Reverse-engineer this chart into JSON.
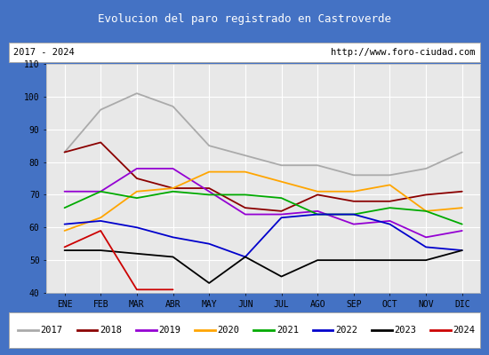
{
  "title": "Evolucion del paro registrado en Castroverde",
  "subtitle_left": "2017 - 2024",
  "subtitle_right": "http://www.foro-ciudad.com",
  "xlabel_months": [
    "ENE",
    "FEB",
    "MAR",
    "ABR",
    "MAY",
    "JUN",
    "JUL",
    "AGO",
    "SEP",
    "OCT",
    "NOV",
    "DIC"
  ],
  "ylim": [
    40,
    110
  ],
  "yticks": [
    40,
    50,
    60,
    70,
    80,
    90,
    100,
    110
  ],
  "series": {
    "2017": {
      "color": "#aaaaaa",
      "values": [
        83,
        96,
        101,
        97,
        85,
        82,
        79,
        79,
        76,
        76,
        78,
        83
      ]
    },
    "2018": {
      "color": "#8b0000",
      "values": [
        83,
        86,
        75,
        72,
        72,
        66,
        65,
        70,
        68,
        68,
        70,
        71
      ]
    },
    "2019": {
      "color": "#9400d3",
      "values": [
        71,
        71,
        78,
        78,
        71,
        64,
        64,
        65,
        61,
        62,
        57,
        59
      ]
    },
    "2020": {
      "color": "#ffa500",
      "values": [
        59,
        63,
        71,
        72,
        77,
        77,
        74,
        71,
        71,
        73,
        65,
        66
      ]
    },
    "2021": {
      "color": "#00aa00",
      "values": [
        66,
        71,
        69,
        71,
        70,
        70,
        69,
        64,
        64,
        66,
        65,
        61
      ]
    },
    "2022": {
      "color": "#0000cc",
      "values": [
        61,
        62,
        60,
        57,
        55,
        51,
        63,
        64,
        64,
        61,
        54,
        53
      ]
    },
    "2023": {
      "color": "#000000",
      "values": [
        53,
        53,
        52,
        51,
        43,
        51,
        45,
        50,
        50,
        50,
        50,
        53
      ]
    },
    "2024": {
      "color": "#cc0000",
      "values": [
        54,
        59,
        41,
        41,
        null,
        null,
        null,
        null,
        null,
        null,
        null,
        null
      ]
    }
  },
  "title_bg_color": "#4472c4",
  "title_font_color": "#ffffff",
  "plot_bg_color": "#e8e8e8",
  "grid_color": "#ffffff",
  "border_color": "#4472c4",
  "frame_bg_color": "#ffffff",
  "legend_border_color": "#aaaaaa",
  "title_fontsize": 9,
  "tick_fontsize": 7,
  "legend_fontsize": 7.5
}
